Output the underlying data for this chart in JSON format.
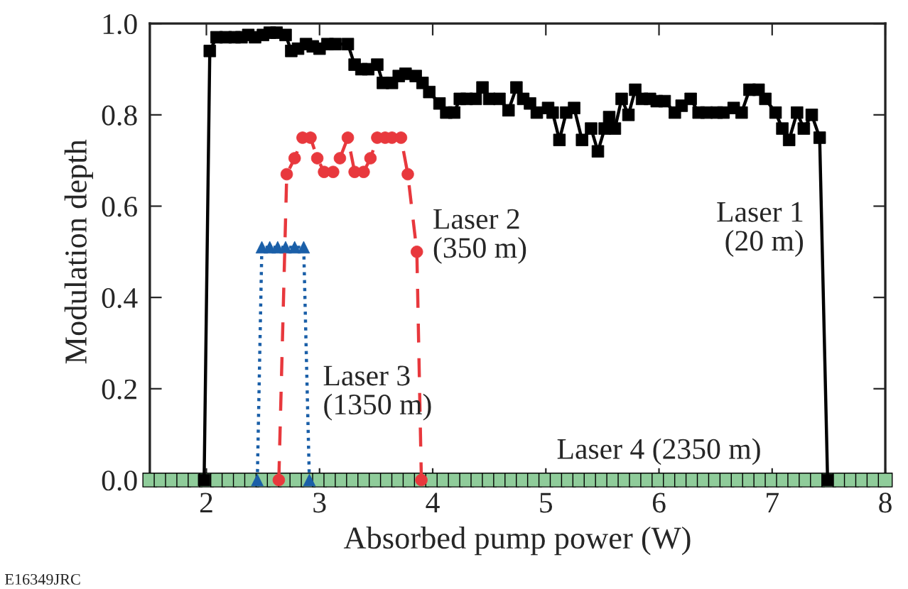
{
  "chart_data": {
    "type": "line",
    "xlabel": "Absorbed pump power (W)",
    "ylabel": "Modulation depth",
    "xlim": [
      1.5,
      8
    ],
    "ylim": [
      0,
      1.0
    ],
    "xticks": [
      2,
      3,
      4,
      5,
      6,
      7,
      8
    ],
    "yticks": [
      {
        "value": 0,
        "label": "0.0"
      },
      {
        "value": 0.2,
        "label": "0.2"
      },
      {
        "value": 0.4,
        "label": "0.4"
      },
      {
        "value": 0.6,
        "label": "0.6"
      },
      {
        "value": 0.8,
        "label": "0.8"
      },
      {
        "value": 1.0,
        "label": "1.0"
      }
    ],
    "grid": false,
    "legend": false,
    "series": [
      {
        "color": "#000000",
        "marker": "square",
        "line_style": "solid",
        "x": [
          1.98,
          2.03,
          2.09,
          2.17,
          2.25,
          2.31,
          2.37,
          2.43,
          2.5,
          2.56,
          2.62,
          2.7,
          2.75,
          2.81,
          2.88,
          2.94,
          3.0,
          3.07,
          3.14,
          3.25,
          3.31,
          3.37,
          3.43,
          3.51,
          3.56,
          3.64,
          3.7,
          3.76,
          3.85,
          3.91,
          3.97,
          4.06,
          4.12,
          4.19,
          4.24,
          4.3,
          4.38,
          4.44,
          4.5,
          4.59,
          4.67,
          4.74,
          4.8,
          4.86,
          4.92,
          5.02,
          5.06,
          5.12,
          5.18,
          5.25,
          5.32,
          5.4,
          5.46,
          5.52,
          5.56,
          5.61,
          5.67,
          5.73,
          5.79,
          5.85,
          5.92,
          5.98,
          6.05,
          6.14,
          6.2,
          6.28,
          6.35,
          6.42,
          6.51,
          6.57,
          6.66,
          6.73,
          6.8,
          6.88,
          6.94,
          7.03,
          7.09,
          7.15,
          7.22,
          7.28,
          7.35,
          7.42,
          7.49
        ],
        "values": [
          0,
          0.94,
          0.97,
          0.97,
          0.97,
          0.97,
          0.975,
          0.97,
          0.975,
          0.98,
          0.98,
          0.975,
          0.94,
          0.945,
          0.955,
          0.95,
          0.945,
          0.955,
          0.955,
          0.955,
          0.91,
          0.9,
          0.9,
          0.91,
          0.87,
          0.87,
          0.885,
          0.89,
          0.885,
          0.87,
          0.85,
          0.825,
          0.805,
          0.805,
          0.835,
          0.835,
          0.835,
          0.86,
          0.835,
          0.835,
          0.81,
          0.86,
          0.835,
          0.825,
          0.805,
          0.815,
          0.805,
          0.745,
          0.805,
          0.815,
          0.745,
          0.77,
          0.72,
          0.77,
          0.795,
          0.77,
          0.835,
          0.8,
          0.855,
          0.835,
          0.835,
          0.83,
          0.83,
          0.805,
          0.82,
          0.835,
          0.805,
          0.805,
          0.805,
          0.805,
          0.815,
          0.805,
          0.855,
          0.855,
          0.835,
          0.805,
          0.77,
          0.745,
          0.805,
          0.77,
          0.8,
          0.75,
          0
        ]
      },
      {
        "color": "#e8383d",
        "marker": "circle",
        "line_style": "dashed",
        "x": [
          2.64,
          2.71,
          2.78,
          2.85,
          2.92,
          2.98,
          3.04,
          3.12,
          3.18,
          3.25,
          3.31,
          3.39,
          3.45,
          3.51,
          3.58,
          3.64,
          3.72,
          3.78,
          3.86,
          3.9
        ],
        "values": [
          0,
          0.67,
          0.705,
          0.75,
          0.75,
          0.705,
          0.675,
          0.675,
          0.705,
          0.75,
          0.675,
          0.675,
          0.705,
          0.75,
          0.75,
          0.75,
          0.75,
          0.67,
          0.5,
          0
        ]
      },
      {
        "color": "#1a5fa8",
        "marker": "triangle",
        "line_style": "dotted",
        "x": [
          2.45,
          2.49,
          2.56,
          2.63,
          2.7,
          2.78,
          2.86,
          2.91
        ],
        "values": [
          0,
          0.51,
          0.51,
          0.51,
          0.51,
          0.51,
          0.51,
          0
        ]
      },
      {
        "color": "#8fcc9a",
        "marker": "square",
        "line_style": "solid",
        "x": [
          1.5,
          1.6,
          1.7,
          1.8,
          1.9,
          2.0,
          2.1,
          2.2,
          2.3,
          2.4,
          2.5,
          2.6,
          2.7,
          2.8,
          2.9,
          3.0,
          3.1,
          3.2,
          3.3,
          3.4,
          3.5,
          3.6,
          3.7,
          3.8,
          3.9,
          4.0,
          4.1,
          4.2,
          4.3,
          4.4,
          4.5,
          4.6,
          4.7,
          4.8,
          4.9,
          5.0,
          5.1,
          5.2,
          5.3,
          5.4,
          5.5,
          5.6,
          5.7,
          5.8,
          5.9,
          6.0,
          6.1,
          6.2,
          6.3,
          6.4,
          6.5,
          6.6,
          6.7,
          6.8,
          6.9,
          7.0,
          7.1,
          7.2,
          7.3,
          7.4,
          7.5,
          7.6,
          7.7,
          7.8,
          7.9,
          8.0
        ],
        "values": [
          0,
          0,
          0,
          0,
          0,
          0,
          0,
          0,
          0,
          0,
          0,
          0,
          0,
          0,
          0,
          0,
          0,
          0,
          0,
          0,
          0,
          0,
          0,
          0,
          0,
          0,
          0,
          0,
          0,
          0,
          0,
          0,
          0,
          0,
          0,
          0,
          0,
          0,
          0,
          0,
          0,
          0,
          0,
          0,
          0,
          0,
          0,
          0,
          0,
          0,
          0,
          0,
          0,
          0,
          0,
          0,
          0,
          0,
          0,
          0,
          0,
          0,
          0,
          0,
          0,
          0
        ]
      }
    ],
    "annotations": [
      {
        "text": "Laser 1\n(20 m)",
        "x": 7.44,
        "y": 0.55
      },
      {
        "text": "Laser 2\n(350 m)",
        "x": 3.86,
        "y": 0.5
      },
      {
        "text": "Laser 3\n(1350 m)",
        "x": 2.89,
        "y": 0.2
      },
      {
        "text": "Laser 4 (2350 m)",
        "x": 6.0,
        "y": 0.02
      },
      "E16349JRC"
    ]
  }
}
